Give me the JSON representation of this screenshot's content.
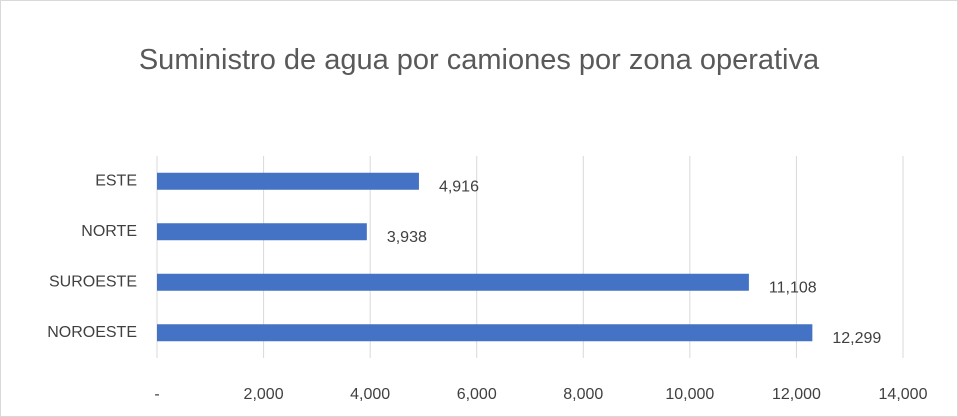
{
  "chart_data": {
    "type": "bar",
    "orientation": "horizontal",
    "title": "Suministro de agua por camiones por zona operativa",
    "categories": [
      "ESTE",
      "NORTE",
      "SUROESTE",
      "NOROESTE"
    ],
    "values": [
      4916,
      3938,
      11108,
      12299
    ],
    "value_labels": [
      "4,916",
      "3,938",
      "11,108",
      "12,299"
    ],
    "color": "#4472c4",
    "xlim": [
      0,
      14000
    ],
    "xticks": [
      {
        "value": 0,
        "label": "-"
      },
      {
        "value": 2000,
        "label": "2,000"
      },
      {
        "value": 4000,
        "label": "4,000"
      },
      {
        "value": 6000,
        "label": "6,000"
      },
      {
        "value": 8000,
        "label": "8,000"
      },
      {
        "value": 10000,
        "label": "10,000"
      },
      {
        "value": 12000,
        "label": "12,000"
      },
      {
        "value": 14000,
        "label": "14,000"
      }
    ],
    "grid": true
  }
}
